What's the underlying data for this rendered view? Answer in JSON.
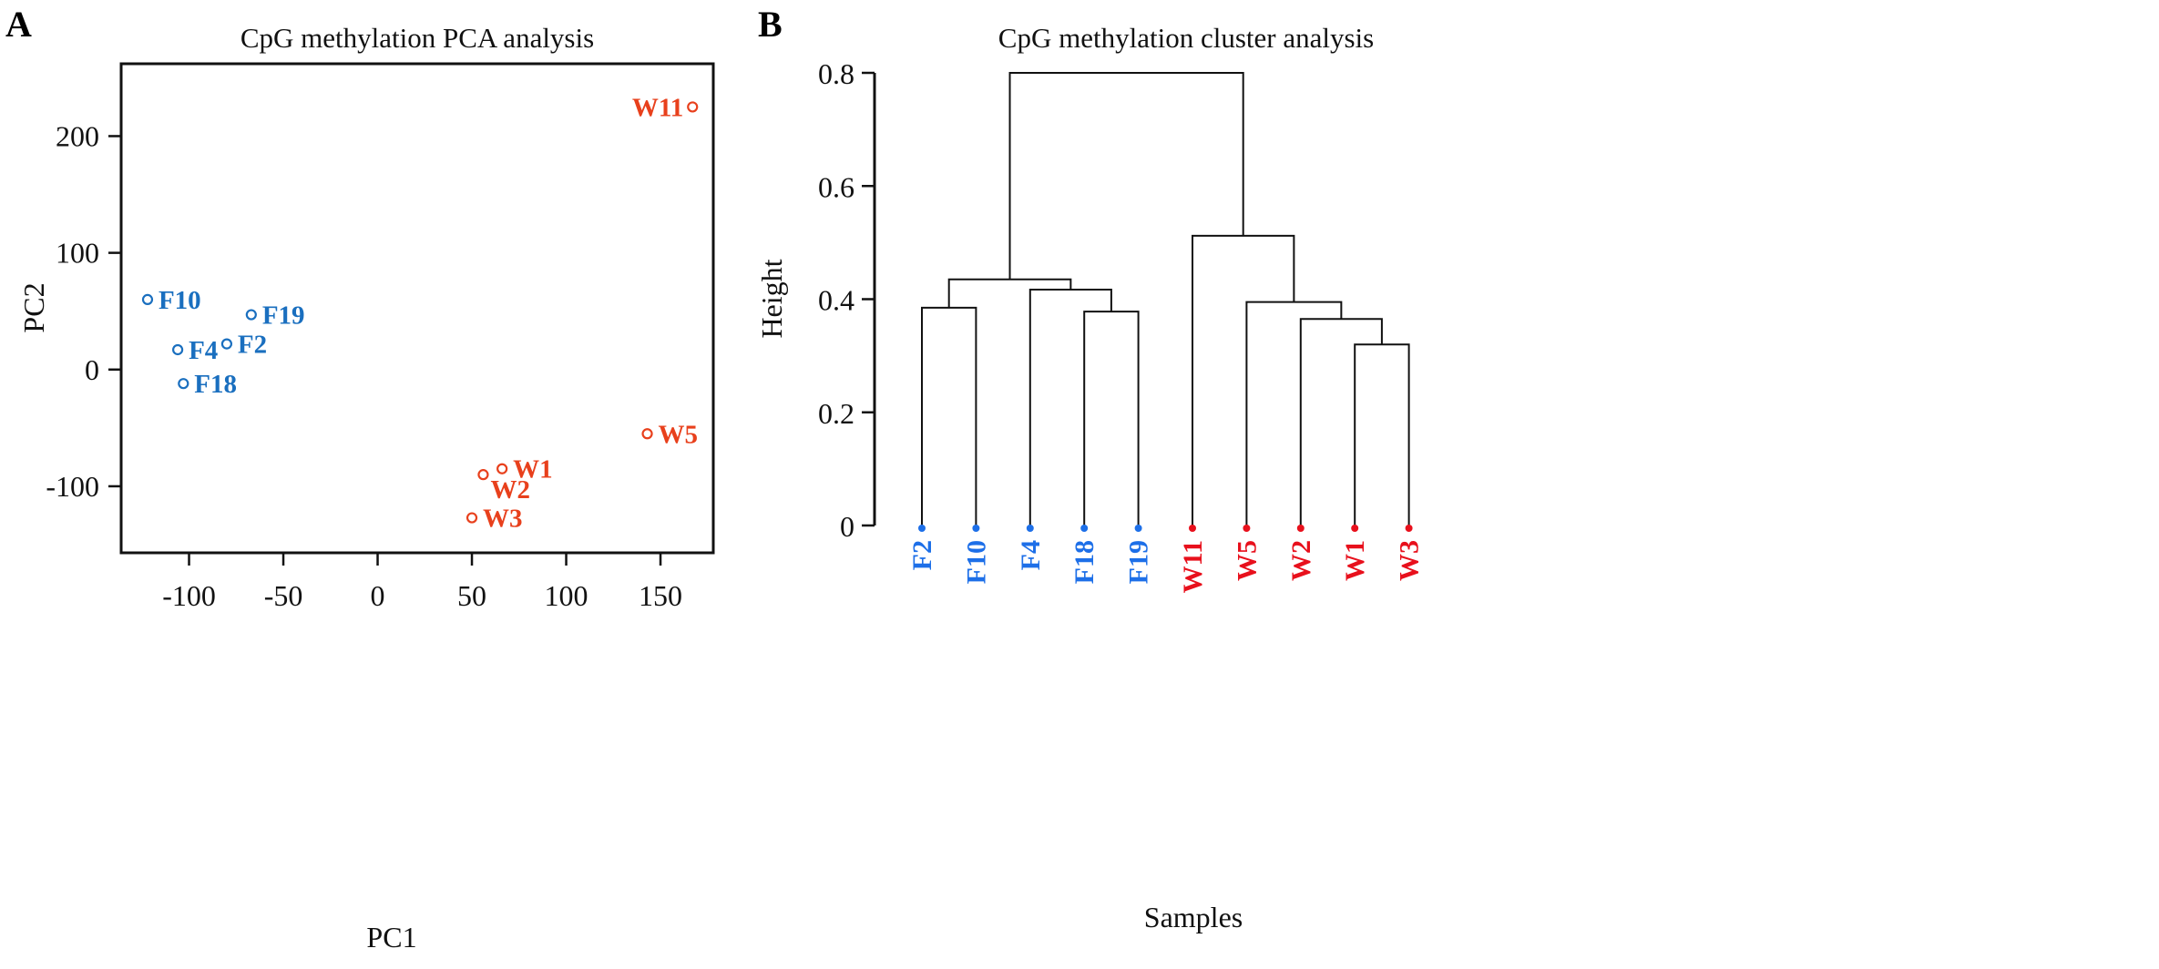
{
  "panels": {
    "a": {
      "letter": "A"
    },
    "b": {
      "letter": "B"
    }
  },
  "colors": {
    "F": "#1a6fbf",
    "W": "#e8401c",
    "F_leaf": "#1d6fe8",
    "W_leaf": "#e8101c"
  },
  "chart_data": [
    {
      "type": "scatter",
      "title": "CpG methylation PCA analysis",
      "xlabel": "PC1",
      "ylabel": "PC2",
      "xlim": [
        -136,
        178
      ],
      "ylim": [
        -157,
        262
      ],
      "xticks": [
        -100,
        -50,
        0,
        50,
        100,
        150
      ],
      "yticks": [
        -100,
        0,
        100,
        200
      ],
      "xtick_labels": [
        "-100",
        "-50",
        "0",
        "50",
        "100",
        "150"
      ],
      "ytick_labels": [
        "-100",
        "0",
        "100",
        "200"
      ],
      "grid": false,
      "points": [
        {
          "label": "F10",
          "group": "F",
          "x": -122,
          "y": 60,
          "label_side": "right"
        },
        {
          "label": "F19",
          "group": "F",
          "x": -67,
          "y": 47,
          "label_side": "right"
        },
        {
          "label": "F4",
          "group": "F",
          "x": -106,
          "y": 17,
          "label_side": "right"
        },
        {
          "label": "F2",
          "group": "F",
          "x": -80,
          "y": 22,
          "label_side": "right"
        },
        {
          "label": "F18",
          "group": "F",
          "x": -103,
          "y": -12,
          "label_side": "right"
        },
        {
          "label": "W11",
          "group": "W",
          "x": 167,
          "y": 225,
          "label_side": "left"
        },
        {
          "label": "W5",
          "group": "W",
          "x": 143,
          "y": -55,
          "label_side": "right"
        },
        {
          "label": "W1",
          "group": "W",
          "x": 66,
          "y": -85,
          "label_side": "right"
        },
        {
          "label": "W2",
          "group": "W",
          "x": 56,
          "y": -90,
          "label_side": "right-below"
        },
        {
          "label": "W3",
          "group": "W",
          "x": 50,
          "y": -127,
          "label_side": "right"
        }
      ]
    },
    {
      "type": "dendrogram",
      "title": "CpG methylation cluster analysis",
      "xlabel": "Samples",
      "ylabel": "Height",
      "ylim": [
        0,
        0.8
      ],
      "yticks": [
        0,
        0.2,
        0.4,
        0.6,
        0.8
      ],
      "ytick_labels": [
        "0",
        "0.2",
        "0.4",
        "0.6",
        "0.8"
      ],
      "leaves": [
        {
          "label": "F2",
          "group": "F"
        },
        {
          "label": "F10",
          "group": "F"
        },
        {
          "label": "F4",
          "group": "F"
        },
        {
          "label": "F18",
          "group": "F"
        },
        {
          "label": "F19",
          "group": "F"
        },
        {
          "label": "W11",
          "group": "W"
        },
        {
          "label": "W5",
          "group": "W"
        },
        {
          "label": "W2",
          "group": "W"
        },
        {
          "label": "W1",
          "group": "W"
        },
        {
          "label": "W3",
          "group": "W"
        }
      ],
      "merges": [
        {
          "id": "m1",
          "left": "F2",
          "right": "F10",
          "height": 0.385
        },
        {
          "id": "m2",
          "left": "F18",
          "right": "F19",
          "height": 0.378
        },
        {
          "id": "m3",
          "left": "F4",
          "right": "m2",
          "height": 0.417
        },
        {
          "id": "m4",
          "left": "m1",
          "right": "m3",
          "height": 0.435
        },
        {
          "id": "m5",
          "left": "W1",
          "right": "W3",
          "height": 0.32
        },
        {
          "id": "m6",
          "left": "W2",
          "right": "m5",
          "height": 0.365
        },
        {
          "id": "m7",
          "left": "W5",
          "right": "m6",
          "height": 0.395
        },
        {
          "id": "m8",
          "left": "W11",
          "right": "m7",
          "height": 0.512
        },
        {
          "id": "m9",
          "left": "m4",
          "right": "m8",
          "height": 0.8
        }
      ]
    }
  ]
}
